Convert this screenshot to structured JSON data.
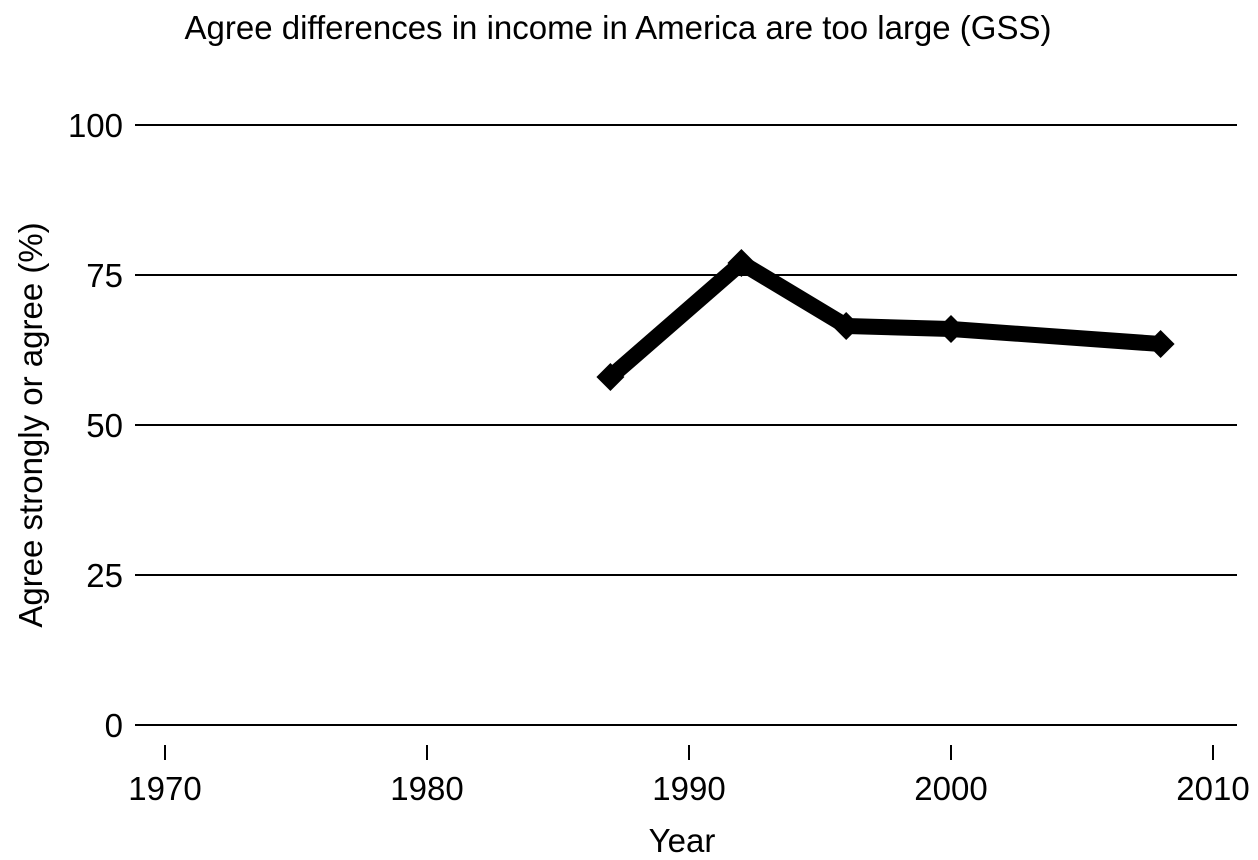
{
  "chart_data": {
    "type": "line",
    "title": "Agree differences in income in America are too large (GSS)",
    "xlabel": "Year",
    "ylabel": "Agree strongly or agree (%)",
    "xlim": [
      1969,
      2011
    ],
    "ylim": [
      0,
      100
    ],
    "x_ticks": [
      "1970",
      "1980",
      "1990",
      "2000",
      "2010"
    ],
    "y_ticks": [
      "0",
      "25",
      "50",
      "75",
      "100"
    ],
    "grid": "horizontal",
    "series": [
      {
        "x": [
          1987,
          1992,
          1996,
          2000,
          2008
        ],
        "y": [
          58,
          77,
          66.5,
          66,
          63.5
        ],
        "color": "#000000",
        "marker": "diamond"
      }
    ]
  }
}
